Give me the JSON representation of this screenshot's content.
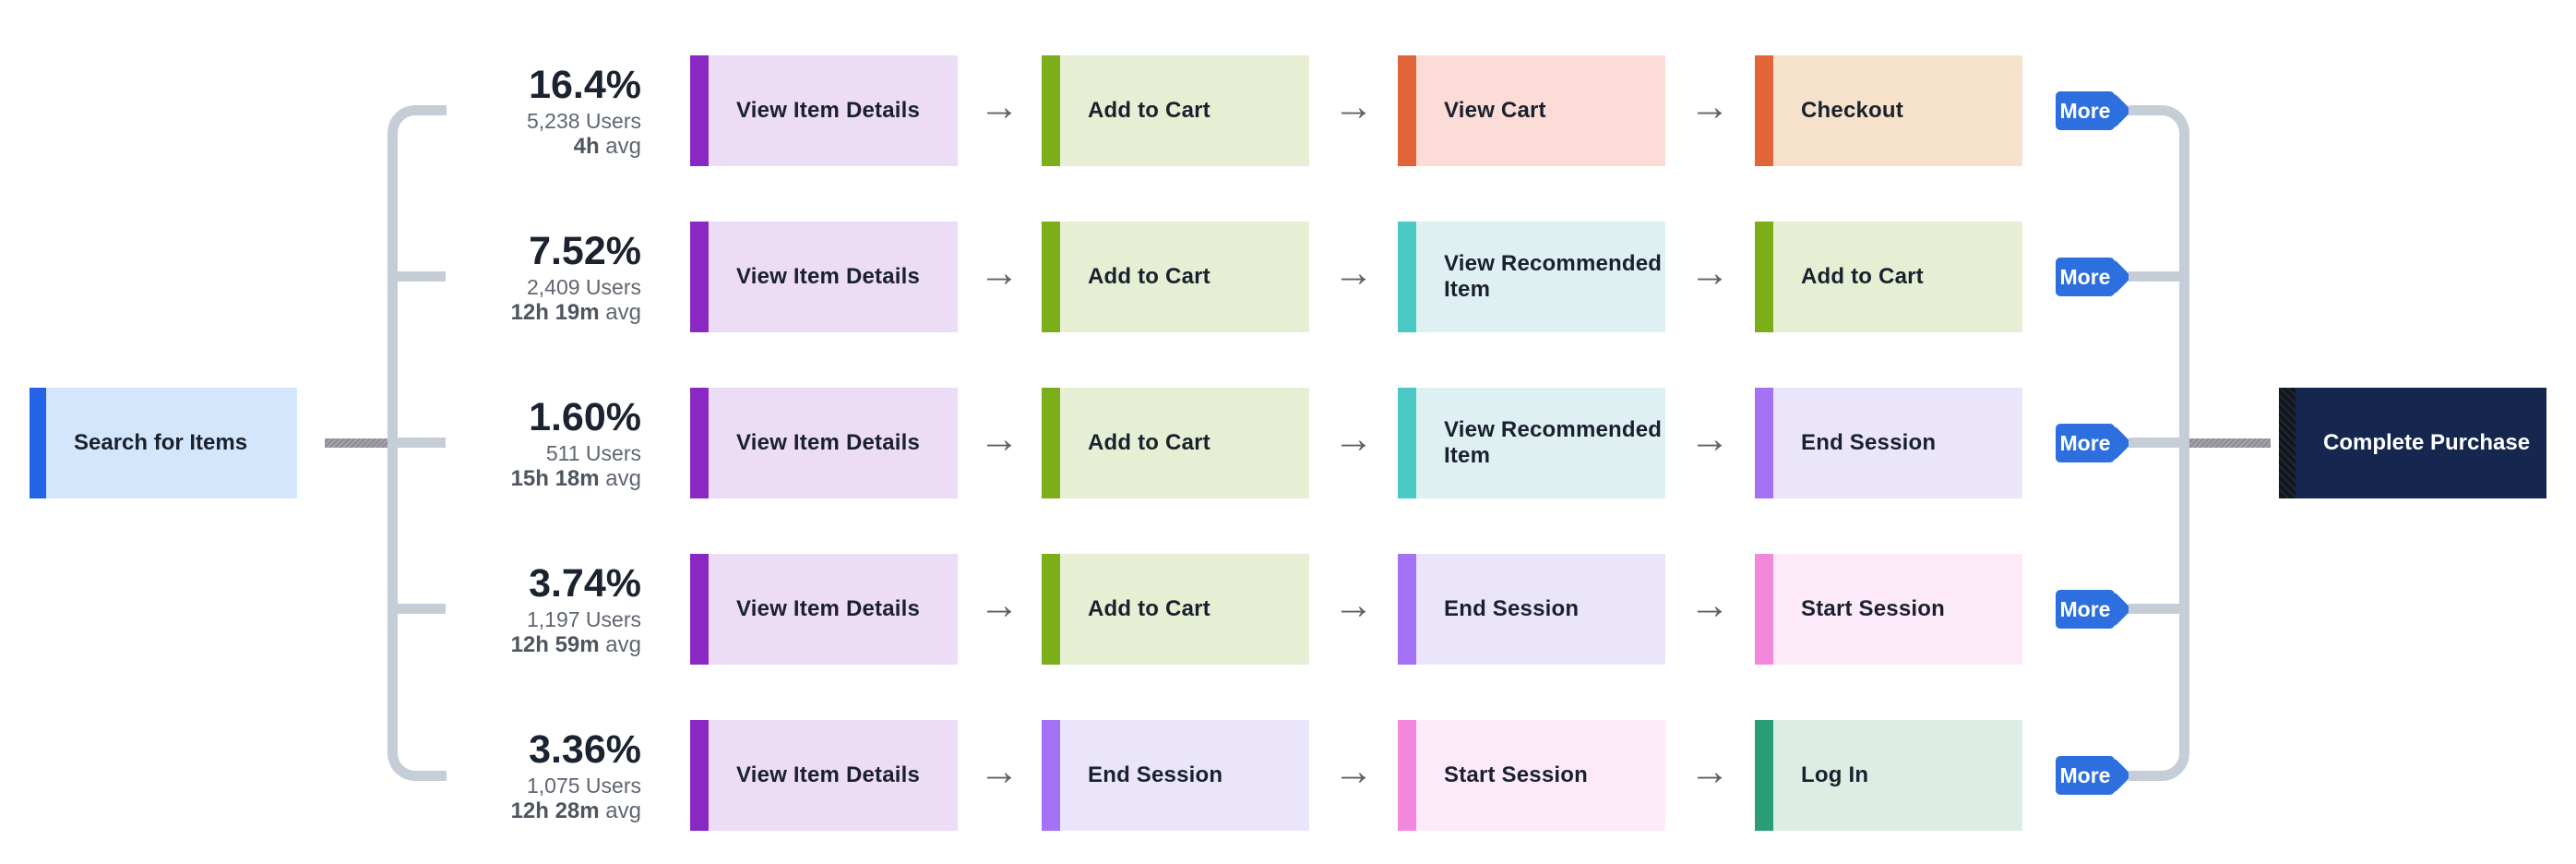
{
  "flow": {
    "start_node": {
      "label": "Search for Items",
      "bar_color": "#2463e6",
      "bg_color": "#d4e6fb"
    },
    "end_node": {
      "label": "Complete Purchase",
      "bar_color": "#12161f",
      "bg_color": "#15274f",
      "text_color": "#ffffff"
    },
    "more_label": "More",
    "more_color": "#2e6fe0",
    "connector_light_color": "#c5ced7",
    "connector_dark_color": "#949199",
    "arrow_icon": "→",
    "rows": [
      {
        "percent": "16.4%",
        "users": "5,238 Users",
        "avg_value": "4h",
        "avg_unit": "avg",
        "steps": [
          {
            "label": "View Item Details",
            "bar": "#8a28c4",
            "bg": "#ecdcf5"
          },
          {
            "label": "Add to Cart",
            "bar": "#7cae19",
            "bg": "#e6efd3"
          },
          {
            "label": "View Cart",
            "bar": "#e2653a",
            "bg": "#fcdcd6"
          },
          {
            "label": "Checkout",
            "bar": "#e2653a",
            "bg": "#f6e2cb"
          }
        ]
      },
      {
        "percent": "7.52%",
        "users": "2,409 Users",
        "avg_value": "12h 19m",
        "avg_unit": "avg",
        "steps": [
          {
            "label": "View Item Details",
            "bar": "#8a28c4",
            "bg": "#ecdcf5"
          },
          {
            "label": "Add to Cart",
            "bar": "#7cae19",
            "bg": "#e6efd3"
          },
          {
            "label": "View Recommended Item",
            "bar": "#4cc9c4",
            "bg": "#def0f2"
          },
          {
            "label": "Add to Cart",
            "bar": "#7cae19",
            "bg": "#e6efd3"
          }
        ]
      },
      {
        "percent": "1.60%",
        "users": "511 Users",
        "avg_value": "15h 18m",
        "avg_unit": "avg",
        "steps": [
          {
            "label": "View Item Details",
            "bar": "#8a28c4",
            "bg": "#ecdcf5"
          },
          {
            "label": "Add to Cart",
            "bar": "#7cae19",
            "bg": "#e6efd3"
          },
          {
            "label": "View Recommended Item",
            "bar": "#4cc9c4",
            "bg": "#def0f2"
          },
          {
            "label": "End Session",
            "bar": "#a571f5",
            "bg": "#ebe5fb"
          }
        ]
      },
      {
        "percent": "3.74%",
        "users": "1,197 Users",
        "avg_value": "12h 59m",
        "avg_unit": "avg",
        "steps": [
          {
            "label": "View Item Details",
            "bar": "#8a28c4",
            "bg": "#ecdcf5"
          },
          {
            "label": "Add to Cart",
            "bar": "#7cae19",
            "bg": "#e6efd3"
          },
          {
            "label": "End Session",
            "bar": "#a571f5",
            "bg": "#ebe5fb"
          },
          {
            "label": "Start Session",
            "bar": "#f287dc",
            "bg": "#fdeaf9"
          }
        ]
      },
      {
        "percent": "3.36%",
        "users": "1,075 Users",
        "avg_value": "12h 28m",
        "avg_unit": "avg",
        "steps": [
          {
            "label": "View Item Details",
            "bar": "#8a28c4",
            "bg": "#ecdcf5"
          },
          {
            "label": "End Session",
            "bar": "#a571f5",
            "bg": "#ebe5fb"
          },
          {
            "label": "Start Session",
            "bar": "#f287dc",
            "bg": "#fdeaf9"
          },
          {
            "label": "Log In",
            "bar": "#2a9d78",
            "bg": "#dcede3"
          }
        ]
      }
    ]
  }
}
